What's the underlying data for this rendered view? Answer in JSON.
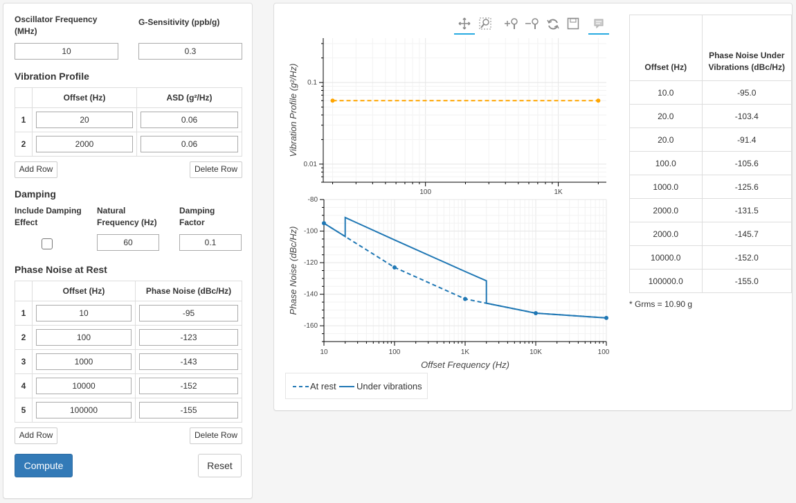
{
  "oscillator": {
    "freq_label": "Oscillator Frequency (MHz)",
    "freq_value": "10",
    "gsens_label": "G-Sensitivity (ppb/g)",
    "gsens_value": "0.3"
  },
  "vibration": {
    "title": "Vibration Profile",
    "col_offset": "Offset (Hz)",
    "col_asd": "ASD (g²/Hz)",
    "rows": [
      {
        "idx": "1",
        "offset": "20",
        "asd": "0.06"
      },
      {
        "idx": "2",
        "offset": "2000",
        "asd": "0.06"
      }
    ],
    "add_row": "Add Row",
    "delete_row": "Delete Row"
  },
  "damping": {
    "title": "Damping",
    "include_label": "Include Damping Effect",
    "include_checked": false,
    "natfreq_label": "Natural Frequency (Hz)",
    "natfreq_value": "60",
    "factor_label": "Damping Factor",
    "factor_value": "0.1"
  },
  "phase_rest": {
    "title": "Phase Noise at Rest",
    "col_offset": "Offset (Hz)",
    "col_pn": "Phase Noise (dBc/Hz)",
    "rows": [
      {
        "idx": "1",
        "offset": "10",
        "pn": "-95"
      },
      {
        "idx": "2",
        "offset": "100",
        "pn": "-123"
      },
      {
        "idx": "3",
        "offset": "1000",
        "pn": "-143"
      },
      {
        "idx": "4",
        "offset": "10000",
        "pn": "-152"
      },
      {
        "idx": "5",
        "offset": "100000",
        "pn": "-155"
      }
    ],
    "add_row": "Add Row",
    "delete_row": "Delete Row"
  },
  "actions": {
    "compute": "Compute",
    "reset": "Reset"
  },
  "toolbar": {
    "icons": [
      "pan-icon",
      "box-zoom-icon",
      "zoom-in-icon",
      "zoom-out-icon",
      "reset-icon",
      "save-icon",
      "hover-icon"
    ]
  },
  "results": {
    "col_offset": "Offset (Hz)",
    "col_pn": "Phase Noise Under Vibrations (dBc/Hz)",
    "rows": [
      {
        "offset": "10.0",
        "pn": "-95.0"
      },
      {
        "offset": "20.0",
        "pn": "-103.4"
      },
      {
        "offset": "20.0",
        "pn": "-91.4"
      },
      {
        "offset": "100.0",
        "pn": "-105.6"
      },
      {
        "offset": "1000.0",
        "pn": "-125.6"
      },
      {
        "offset": "2000.0",
        "pn": "-131.5"
      },
      {
        "offset": "2000.0",
        "pn": "-145.7"
      },
      {
        "offset": "10000.0",
        "pn": "-152.0"
      },
      {
        "offset": "100000.0",
        "pn": "-155.0"
      }
    ],
    "grms": "* Grms = 10.90 g"
  },
  "chart_data": [
    {
      "type": "line",
      "ylabel": "Vibration Profile (g²/Hz)",
      "xscale": "log",
      "yscale": "log",
      "xlim": [
        17,
        2300
      ],
      "ylim": [
        0.006,
        0.35
      ],
      "yticks": [
        "0.1",
        "0.01"
      ],
      "xticks": [
        "100",
        "1K"
      ],
      "series": [
        {
          "style": "dashed",
          "color": "#ffa500",
          "x": [
            20,
            2000
          ],
          "y": [
            0.06,
            0.06
          ]
        }
      ]
    },
    {
      "type": "line",
      "xlabel": "Offset Frequency (Hz)",
      "ylabel": "Phase Noise (dBc/Hz)",
      "xscale": "log",
      "xlim": [
        10,
        100000
      ],
      "ylim": [
        -170,
        -80
      ],
      "yticks": [
        "-80",
        "-100",
        "-120",
        "-140",
        "-160"
      ],
      "xticks": [
        "10",
        "100",
        "1K",
        "10K",
        "100"
      ],
      "series": [
        {
          "name": "At rest",
          "style": "dashed",
          "color": "#1f77b4",
          "x": [
            10,
            100,
            1000,
            10000,
            100000
          ],
          "y": [
            -95,
            -123,
            -143,
            -152,
            -155
          ]
        },
        {
          "name": "Under vibrations",
          "style": "solid",
          "color": "#1f77b4",
          "x": [
            10,
            20,
            20,
            100,
            1000,
            2000,
            2000,
            10000,
            100000
          ],
          "y": [
            -95,
            -103.4,
            -91.4,
            -105.6,
            -125.6,
            -131.5,
            -145.7,
            -152,
            -155
          ]
        }
      ],
      "legend": "bottom-left"
    }
  ]
}
